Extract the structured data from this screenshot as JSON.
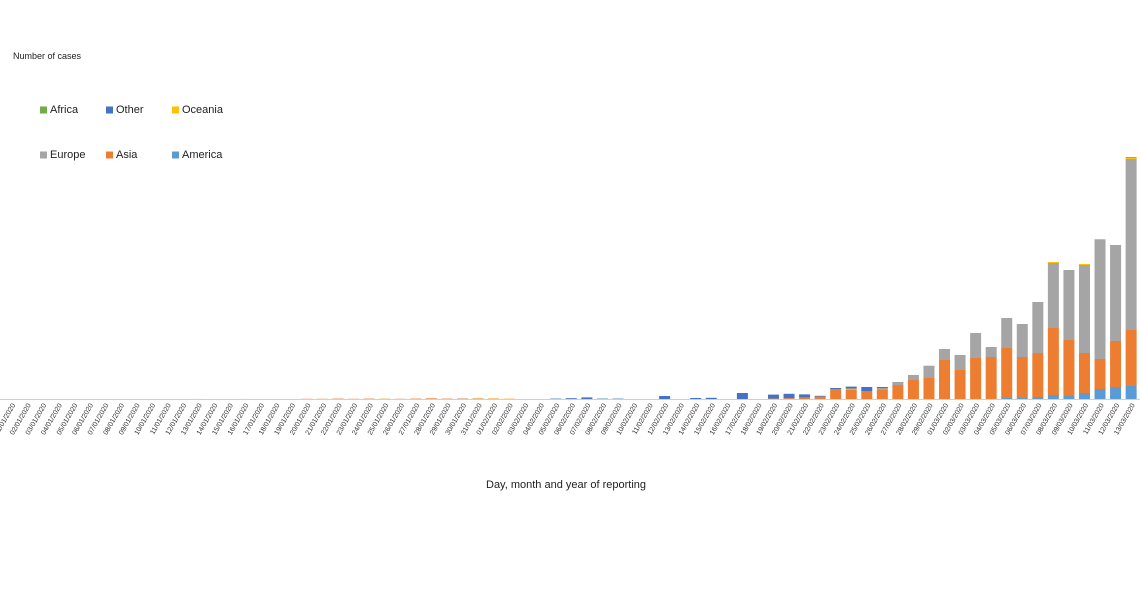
{
  "chart_data": {
    "type": "stacked-bar",
    "y_label": "Number of cases",
    "x_label": "Day, month and year of reporting",
    "categories": [
      "31/12/2019",
      "01/01/2020",
      "02/01/2020",
      "03/01/2020",
      "04/01/2020",
      "05/01/2020",
      "06/01/2020",
      "07/01/2020",
      "08/01/2020",
      "09/01/2020",
      "10/01/2020",
      "11/01/2020",
      "12/01/2020",
      "13/01/2020",
      "14/01/2020",
      "15/01/2020",
      "16/01/2020",
      "17/01/2020",
      "18/01/2020",
      "19/01/2020",
      "20/01/2020",
      "21/01/2020",
      "22/01/2020",
      "23/01/2020",
      "24/01/2020",
      "25/01/2020",
      "26/01/2020",
      "27/01/2020",
      "28/01/2020",
      "29/01/2020",
      "30/01/2020",
      "31/01/2020",
      "01/02/2020",
      "02/02/2020",
      "03/02/2020",
      "04/02/2020",
      "05/02/2020",
      "06/02/2020",
      "07/02/2020",
      "08/02/2020",
      "09/02/2020",
      "10/02/2020",
      "11/02/2020",
      "12/02/2020",
      "13/02/2020",
      "14/02/2020",
      "15/02/2020",
      "16/02/2020",
      "17/02/2020",
      "18/02/2020",
      "19/02/2020",
      "20/02/2020",
      "21/02/2020",
      "22/02/2020",
      "23/02/2020",
      "24/02/2020",
      "25/02/2020",
      "26/02/2020",
      "27/02/2020",
      "28/02/2020",
      "29/02/2020",
      "01/03/2020",
      "02/03/2020",
      "03/03/2020",
      "04/03/2020",
      "05/03/2020",
      "06/03/2020",
      "07/03/2020",
      "08/03/2020",
      "09/03/2020",
      "10/03/2020",
      "11/03/2020",
      "12/03/2020",
      "13/03/2020"
    ],
    "series": [
      {
        "name": "Africa",
        "color": "#70ad47",
        "values": [
          0,
          0,
          0,
          0,
          0,
          0,
          0,
          0,
          0,
          0,
          0,
          0,
          0,
          0,
          0,
          0,
          0,
          0,
          0,
          0,
          0,
          0,
          0,
          0,
          0,
          0,
          0,
          0,
          0,
          0,
          0,
          0,
          0,
          0,
          0,
          0,
          0,
          0,
          0,
          0,
          0,
          0,
          0,
          0,
          0,
          0,
          0,
          0,
          0,
          0,
          0,
          0,
          0,
          0,
          0,
          0,
          0,
          0,
          1,
          0,
          0,
          0,
          0,
          0,
          0,
          0,
          0,
          0,
          0,
          0,
          0,
          0,
          0,
          20
        ]
      },
      {
        "name": "Other",
        "color": "#4472c4",
        "values": [
          0,
          0,
          0,
          0,
          0,
          0,
          0,
          0,
          0,
          0,
          0,
          0,
          0,
          0,
          0,
          0,
          0,
          0,
          0,
          0,
          0,
          0,
          0,
          0,
          0,
          0,
          0,
          0,
          0,
          0,
          0,
          0,
          0,
          0,
          0,
          0,
          10,
          20,
          40,
          10,
          10,
          0,
          0,
          75,
          0,
          25,
          30,
          0,
          150,
          0,
          100,
          110,
          75,
          20,
          25,
          50,
          100,
          25,
          0,
          0,
          0,
          0,
          0,
          0,
          0,
          0,
          0,
          0,
          0,
          0,
          0,
          0,
          0,
          0
        ]
      },
      {
        "name": "Oceania",
        "color": "#ffc000",
        "values": [
          0,
          0,
          0,
          0,
          0,
          0,
          0,
          0,
          0,
          0,
          0,
          0,
          0,
          0,
          0,
          0,
          0,
          0,
          0,
          0,
          0,
          0,
          0,
          0,
          0,
          4,
          0,
          0,
          0,
          0,
          0,
          5,
          5,
          5,
          0,
          0,
          0,
          0,
          0,
          0,
          0,
          0,
          0,
          0,
          0,
          0,
          0,
          0,
          0,
          0,
          0,
          0,
          0,
          0,
          0,
          15,
          0,
          0,
          0,
          0,
          10,
          0,
          0,
          0,
          0,
          0,
          0,
          0,
          25,
          0,
          25,
          25,
          0,
          30
        ]
      },
      {
        "name": "Europe",
        "color": "#a5a5a5",
        "values": [
          0,
          0,
          0,
          0,
          0,
          0,
          0,
          0,
          0,
          0,
          0,
          0,
          0,
          0,
          0,
          0,
          0,
          0,
          0,
          0,
          0,
          0,
          0,
          0,
          0,
          3,
          0,
          0,
          2,
          0,
          5,
          5,
          0,
          0,
          0,
          0,
          0,
          0,
          0,
          0,
          0,
          0,
          0,
          0,
          0,
          0,
          0,
          0,
          0,
          0,
          0,
          0,
          0,
          0,
          0,
          20,
          0,
          50,
          75,
          125,
          300,
          275,
          375,
          625,
          250,
          750,
          825,
          1275,
          1625,
          1750,
          2200,
          2975,
          2400,
          4275
        ]
      },
      {
        "name": "Asia",
        "color": "#ed7d31",
        "values": [
          0,
          0,
          0,
          0,
          0,
          0,
          0,
          0,
          0,
          0,
          0,
          0,
          0,
          1,
          0,
          0,
          1,
          0,
          0,
          0,
          5,
          5,
          10,
          5,
          10,
          5,
          5,
          10,
          15,
          10,
          10,
          10,
          10,
          5,
          0,
          0,
          0,
          0,
          0,
          0,
          0,
          0,
          0,
          0,
          0,
          0,
          0,
          0,
          0,
          0,
          10,
          20,
          40,
          60,
          250,
          225,
          200,
          225,
          350,
          475,
          525,
          975,
          725,
          1025,
          1050,
          1250,
          1025,
          1100,
          1675,
          1400,
          1000,
          750,
          1150,
          1400
        ]
      },
      {
        "name": "America",
        "color": "#5b9bd5",
        "values": [
          0,
          0,
          0,
          0,
          0,
          0,
          0,
          0,
          0,
          0,
          0,
          0,
          0,
          0,
          0,
          0,
          0,
          0,
          0,
          0,
          0,
          0,
          0,
          0,
          0,
          0,
          0,
          0,
          0,
          0,
          0,
          0,
          0,
          0,
          0,
          0,
          0,
          0,
          0,
          0,
          0,
          0,
          0,
          0,
          0,
          0,
          0,
          0,
          0,
          0,
          0,
          0,
          0,
          0,
          0,
          0,
          0,
          0,
          0,
          0,
          0,
          0,
          0,
          0,
          0,
          25,
          25,
          50,
          100,
          75,
          150,
          250,
          300,
          325
        ]
      }
    ],
    "ylim": [
      0,
      10000
    ]
  }
}
